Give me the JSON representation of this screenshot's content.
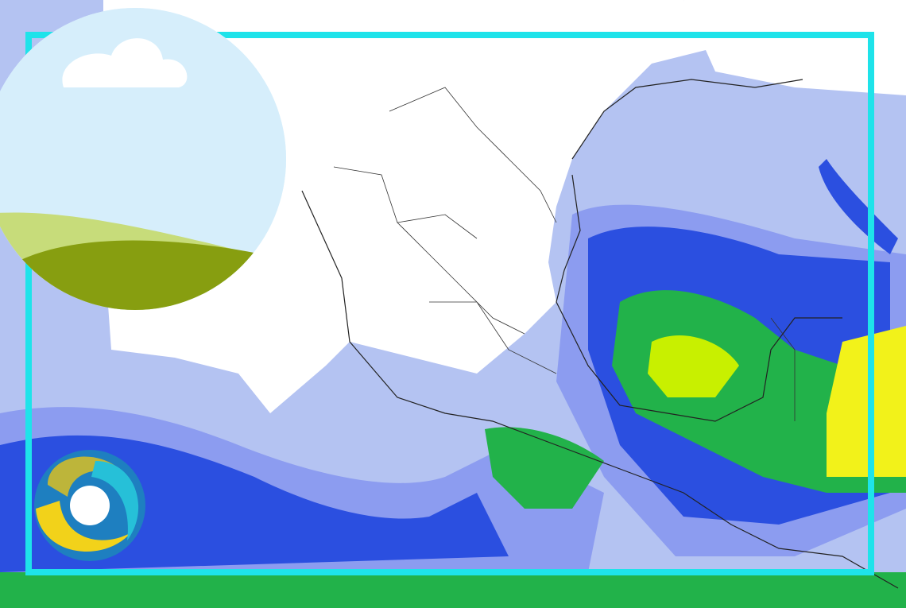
{
  "map": {
    "colors": {
      "ocean_light": "#b4c3f2",
      "land_dry": "#ffffff",
      "rain_light": "#7d8cf0",
      "rain_mid": "#2b4fe0",
      "rain_heavy": "#22b24a",
      "rain_very_heavy": "#c8f000",
      "rain_extreme": "#f2f21a",
      "frame": "#1ee3ea"
    }
  },
  "overlay": {
    "weather_icon": "sun-cloud-hills-icon",
    "logo": "circular-swirl-logo"
  }
}
